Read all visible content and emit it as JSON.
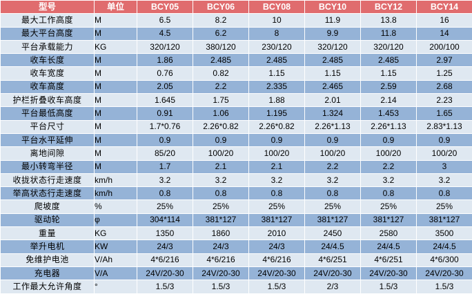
{
  "table": {
    "headers": [
      "型号",
      "单位",
      "BCY05",
      "BCY06",
      "BCY08",
      "BCY10",
      "BCY12",
      "BCY14"
    ],
    "rows": [
      {
        "name": "最大工作高度",
        "unit": "M",
        "values": [
          "6.5",
          "8.2",
          "10",
          "11.9",
          "13.8",
          "16"
        ]
      },
      {
        "name": "最大平台高度",
        "unit": "M",
        "values": [
          "4.5",
          "6.2",
          "8",
          "9.9",
          "11.8",
          "14"
        ]
      },
      {
        "name": "平台承载能力",
        "unit": "KG",
        "values": [
          "320/120",
          "380/120",
          "230/120",
          "320/120",
          "320/120",
          "200/100"
        ]
      },
      {
        "name": "收车长度",
        "unit": "M",
        "values": [
          "1.86",
          "2.485",
          "2.485",
          "2.485",
          "2.485",
          "2.97"
        ]
      },
      {
        "name": "收车宽度",
        "unit": "M",
        "values": [
          "0.76",
          "0.82",
          "1.15",
          "1.15",
          "1.15",
          "1.25"
        ]
      },
      {
        "name": "收车高度",
        "unit": "M",
        "values": [
          "2.05",
          "2.2",
          "2.335",
          "2.465",
          "2.59",
          "2.68"
        ]
      },
      {
        "name": "护栏折叠收车高度",
        "unit": "M",
        "values": [
          "1.645",
          "1.75",
          "1.88",
          "2.01",
          "2.14",
          "2.23"
        ]
      },
      {
        "name": "平台最低高度",
        "unit": "M",
        "values": [
          "0.91",
          "1.06",
          "1.195",
          "1.324",
          "1.453",
          "1.65"
        ]
      },
      {
        "name": "平台尺寸",
        "unit": "M",
        "values": [
          "1.7*0.76",
          "2.26*0.82",
          "2.26*0.82",
          "2.26*1.13",
          "2.26*1.13",
          "2.83*1.13"
        ]
      },
      {
        "name": "平台水平延伸",
        "unit": "M",
        "values": [
          "0.9",
          "0.9",
          "0.9",
          "0.9",
          "0.9",
          "0.9"
        ]
      },
      {
        "name": "离地间隙",
        "unit": "M",
        "values": [
          "85/20",
          "100/20",
          "100/20",
          "100/20",
          "100/20",
          "100/20"
        ]
      },
      {
        "name": "最小转弯半径",
        "unit": "M",
        "values": [
          "1.7",
          "2.1",
          "2.1",
          "2.2",
          "2.2",
          "3"
        ]
      },
      {
        "name": "收拢状态行走速度",
        "unit": "km/h",
        "values": [
          "3.2",
          "3.2",
          "3.2",
          "3.2",
          "3.2",
          "3.2"
        ]
      },
      {
        "name": "举高状态行走速度",
        "unit": "km/h",
        "values": [
          "0.8",
          "0.8",
          "0.8",
          "0.8",
          "0.8",
          "0.8"
        ]
      },
      {
        "name": "爬坡度",
        "unit": "%",
        "values": [
          "25%",
          "25%",
          "25%",
          "25%",
          "25%",
          "25%"
        ]
      },
      {
        "name": "驱动轮",
        "unit": "φ",
        "values": [
          "304*114",
          "381*127",
          "381*127",
          "381*127",
          "381*127",
          "381*127"
        ]
      },
      {
        "name": "重量",
        "unit": "KG",
        "values": [
          "1350",
          "1860",
          "2010",
          "2450",
          "2580",
          "3500"
        ]
      },
      {
        "name": "举升电机",
        "unit": "KW",
        "values": [
          "24/3",
          "24/3",
          "24/3",
          "24/4.5",
          "24/4.5",
          "24/4.5"
        ]
      },
      {
        "name": "免维护电池",
        "unit": "V/Ah",
        "values": [
          "4*6/216",
          "4*6/216",
          "4*6/216",
          "4*6/251",
          "4*6/251",
          "4*6/300"
        ]
      },
      {
        "name": "充电器",
        "unit": "V/A",
        "values": [
          "24V/20-30",
          "24V/20-30",
          "24V/20-30",
          "24V/20-30",
          "24V/20-30",
          "24V/20-30"
        ]
      },
      {
        "name": "工作最大允许角度",
        "unit": "°",
        "values": [
          "1.5/3",
          "1.5/3",
          "1.5/3",
          "2/3",
          "1.5/3",
          "1.5/3"
        ]
      }
    ]
  },
  "colors": {
    "header_bg": "#e06c6e",
    "row_light": "#dfe8f1",
    "row_dark": "#95b3d7"
  }
}
